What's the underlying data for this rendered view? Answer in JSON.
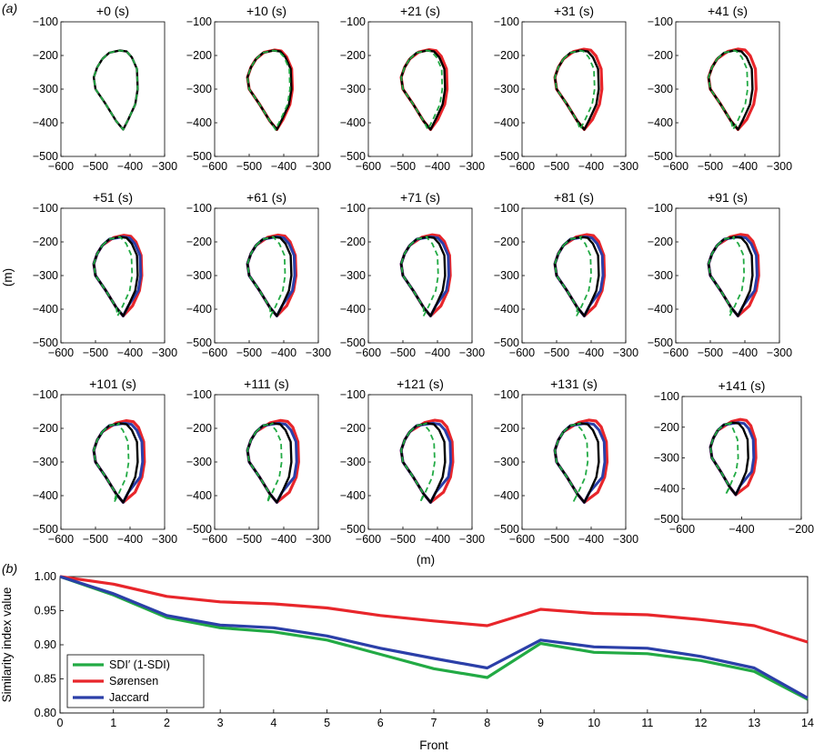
{
  "panel_labels": [
    "(a)",
    "(b)"
  ],
  "chart_data": [
    {
      "type": "grid-of-shape-plots",
      "panel": "(a)",
      "xlabel": "(m)",
      "ylabel": "(m)",
      "xlim": [
        -600,
        -300
      ],
      "ylim": [
        -500,
        -100
      ],
      "xticks": [
        -600,
        -500,
        -400,
        -300
      ],
      "yticks": [
        -100,
        -200,
        -300,
        -400,
        -500
      ],
      "last_panel_xlim": [
        -600,
        -200
      ],
      "last_panel_xticks": [
        -600,
        -400,
        -200
      ],
      "subplot_titles": [
        "+0 (s)",
        "+10 (s)",
        "+21 (s)",
        "+31 (s)",
        "+41 (s)",
        "+51 (s)",
        "+61 (s)",
        "+71 (s)",
        "+81 (s)",
        "+91 (s)",
        "+101 (s)",
        "+111 (s)",
        "+121 (s)",
        "+131 (s)",
        "+141 (s)"
      ],
      "reference_outline": {
        "x": [
          -480,
          -460,
          -430,
          -410,
          -395,
          -380,
          -378,
          -385,
          -405,
          -420,
          -440,
          -470,
          -500,
          -505,
          -495,
          -480
        ],
        "y": [
          -210,
          -192,
          -185,
          -188,
          -205,
          -240,
          -300,
          -345,
          -390,
          -420,
          -395,
          -345,
          -300,
          -265,
          -235,
          -210
        ]
      },
      "fronts": [
        {
          "expand": 0
        },
        {
          "expand": 0.1
        },
        {
          "expand": 0.2
        },
        {
          "expand": 0.3
        },
        {
          "expand": 0.35
        },
        {
          "expand": 0.4
        },
        {
          "expand": 0.45
        },
        {
          "expand": 0.5
        },
        {
          "expand": 0.55
        },
        {
          "expand": 0.6
        },
        {
          "expand": 0.65
        },
        {
          "expand": 0.7
        },
        {
          "expand": 0.75
        },
        {
          "expand": 0.8
        },
        {
          "expand": 0.85
        }
      ],
      "colors": {
        "outline": "#000000",
        "reference": "#22aa44",
        "sorensen": "#e8262b",
        "jaccard": "#2b3fa8"
      }
    },
    {
      "type": "line",
      "panel": "(b)",
      "xlabel": "Front",
      "ylabel": "Similarity index value",
      "xlim": [
        0,
        14
      ],
      "ylim": [
        0.8,
        1.0
      ],
      "x": [
        0,
        1,
        2,
        3,
        4,
        5,
        6,
        7,
        8,
        9,
        10,
        11,
        12,
        13,
        14
      ],
      "xticks": [
        0,
        1,
        2,
        3,
        4,
        5,
        6,
        7,
        8,
        9,
        10,
        11,
        12,
        13,
        14
      ],
      "yticks": [
        0.8,
        0.85,
        0.9,
        0.95,
        1.0
      ],
      "ytick_labels": [
        "0.80",
        "0.85",
        "0.90",
        "0.95",
        "1.00"
      ],
      "legend": "bottom-left",
      "series": [
        {
          "name": "SDI′ (1-SDI)",
          "color": "#22aa44",
          "values": [
            1.0,
            0.973,
            0.94,
            0.925,
            0.919,
            0.907,
            0.886,
            0.865,
            0.852,
            0.902,
            0.889,
            0.887,
            0.877,
            0.861,
            0.82
          ]
        },
        {
          "name": "Sørensen",
          "color": "#e8262b",
          "values": [
            1.0,
            0.989,
            0.971,
            0.963,
            0.96,
            0.954,
            0.943,
            0.935,
            0.928,
            0.952,
            0.946,
            0.944,
            0.937,
            0.928,
            0.904
          ]
        },
        {
          "name": "Jaccard",
          "color": "#2b3fa8",
          "values": [
            1.0,
            0.975,
            0.943,
            0.929,
            0.925,
            0.913,
            0.895,
            0.88,
            0.866,
            0.907,
            0.897,
            0.895,
            0.883,
            0.866,
            0.822
          ]
        }
      ]
    }
  ]
}
